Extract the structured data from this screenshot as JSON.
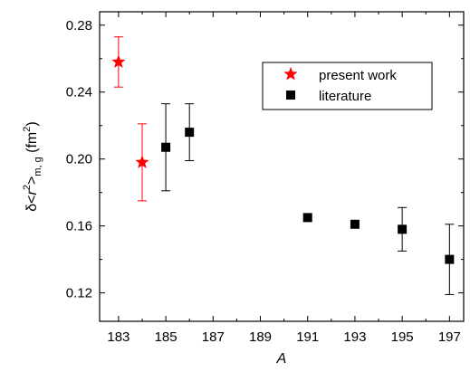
{
  "chart_data": {
    "type": "scatter",
    "xlabel": "A",
    "ylabel_parts": {
      "prefix": "δ<",
      "r": "r",
      "sup": "2",
      "close": ">",
      "sub": "m, g",
      "unit_open": " (fm",
      "unit_sup": "2",
      "unit_close": ")"
    },
    "xlim": [
      182.2,
      197.6
    ],
    "ylim": [
      0.103,
      0.288
    ],
    "x_ticks": [
      183,
      185,
      187,
      189,
      191,
      193,
      195,
      197
    ],
    "y_ticks": [
      0.12,
      0.16,
      0.2,
      0.24,
      0.28
    ],
    "x_tick_labels": [
      "183",
      "185",
      "187",
      "189",
      "191",
      "193",
      "195",
      "197"
    ],
    "y_tick_labels": [
      "0.12",
      "0.16",
      "0.20",
      "0.24",
      "0.28"
    ],
    "grid": false,
    "legend_position": "top-right",
    "series": [
      {
        "name": "present work",
        "marker": "star",
        "color": "#ff0000",
        "points": [
          {
            "x": 183,
            "y": 0.258,
            "err_low": 0.243,
            "err_high": 0.273
          },
          {
            "x": 184,
            "y": 0.198,
            "err_low": 0.175,
            "err_high": 0.221
          }
        ]
      },
      {
        "name": "literature",
        "marker": "square",
        "color": "#000000",
        "points": [
          {
            "x": 185,
            "y": 0.207,
            "err_low": 0.181,
            "err_high": 0.233
          },
          {
            "x": 186,
            "y": 0.216,
            "err_low": 0.199,
            "err_high": 0.233
          },
          {
            "x": 191,
            "y": 0.165
          },
          {
            "x": 193,
            "y": 0.161
          },
          {
            "x": 195,
            "y": 0.158,
            "err_low": 0.145,
            "err_high": 0.171
          },
          {
            "x": 197,
            "y": 0.14,
            "err_low": 0.119,
            "err_high": 0.161
          }
        ]
      }
    ]
  }
}
